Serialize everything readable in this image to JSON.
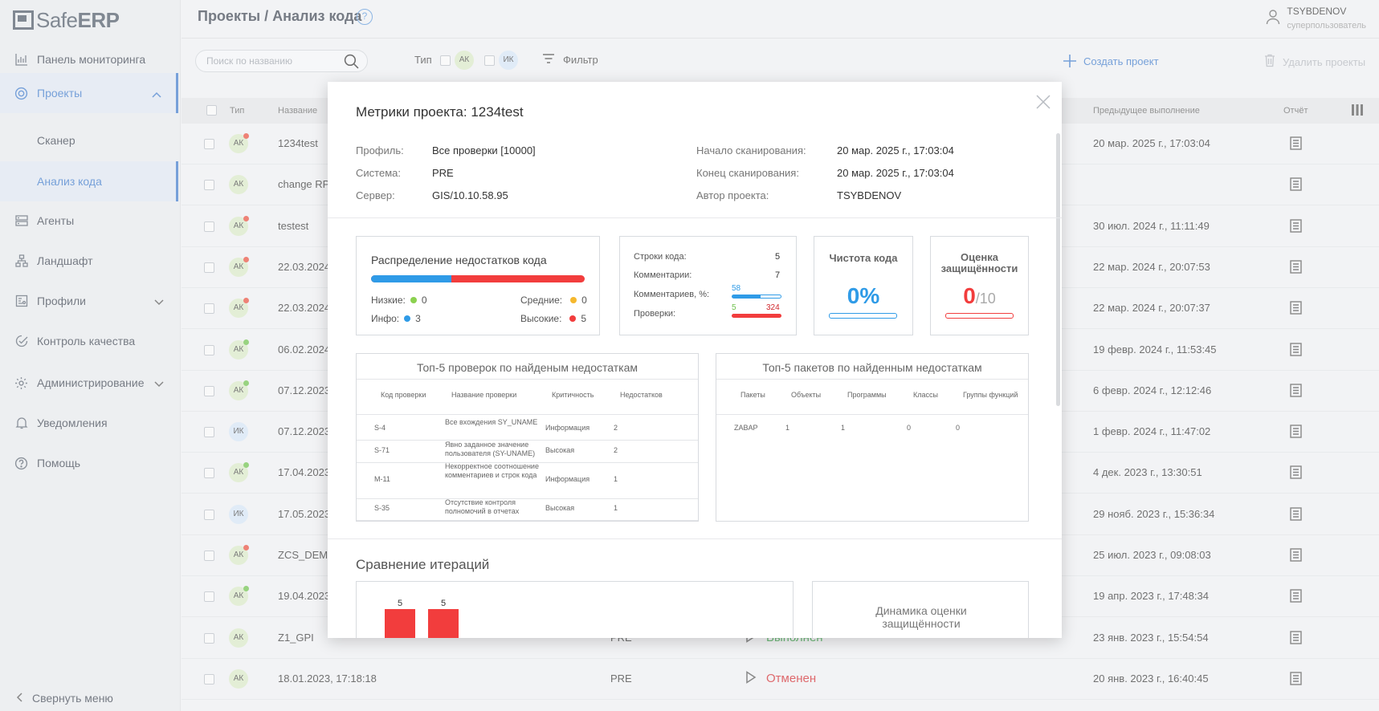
{
  "app": {
    "logo_light": "Safe",
    "logo_bold": "ERP"
  },
  "sidebar": {
    "items": [
      {
        "label": "Панель мониторинга",
        "icon": "dashboard-chart-icon"
      },
      {
        "label": "Проекты",
        "icon": "projects-icon",
        "expanded": true
      },
      {
        "label": "Сканер",
        "sub": true
      },
      {
        "label": "Анализ кода",
        "sub": true,
        "active": true
      },
      {
        "label": "Агенты",
        "icon": "server-icon"
      },
      {
        "label": "Ландшафт",
        "icon": "landscape-icon"
      },
      {
        "label": "Профили",
        "icon": "profiles-icon"
      },
      {
        "label": "Контроль качества",
        "icon": "quality-icon"
      },
      {
        "label": "Администрирование",
        "icon": "gear-icon"
      },
      {
        "label": "Уведомления",
        "icon": "bell-icon"
      },
      {
        "label": "Помощь",
        "icon": "help-icon"
      }
    ],
    "collapse_label": "Свернуть меню"
  },
  "header": {
    "title": "Проекты / Анализ кода",
    "user_name": "TSYBDENOV",
    "user_role": "суперпользователь"
  },
  "toolbar": {
    "search_placeholder": "Поиск по названию",
    "type_label": "Тип",
    "type_ak": "АК",
    "type_ik": "ИК",
    "filter_label": "Фильтр",
    "create_label": "Создать проект",
    "delete_label": "Удалить проекты"
  },
  "table": {
    "columns": {
      "type": "Тип",
      "name": "Название",
      "prev": "Предыдущее выполнение",
      "report": "Отчёт"
    },
    "rows": [
      {
        "type": "АК",
        "dot": "#e74c3c",
        "name": "1234test",
        "system": "",
        "status": "",
        "prev": "20 мар. 2025 г., 17:03:04"
      },
      {
        "type": "АК",
        "dot": "",
        "name": "change RP",
        "system": "",
        "status": "",
        "prev": ""
      },
      {
        "type": "АК",
        "dot": "#e74c3c",
        "name": "testest",
        "system": "",
        "status": "",
        "prev": "30 июл. 2024 г., 11:11:49"
      },
      {
        "type": "АК",
        "dot": "#e74c3c",
        "name": "22.03.2024",
        "system": "",
        "status": "",
        "prev": "22 мар. 2024 г., 20:07:53"
      },
      {
        "type": "АК",
        "dot": "#e74c3c",
        "name": "22.03.2024",
        "system": "",
        "status": "",
        "prev": "22 мар. 2024 г., 20:07:37"
      },
      {
        "type": "АК",
        "dot": "#6cc04a",
        "name": "06.02.2024",
        "system": "",
        "status": "",
        "prev": "19 февр. 2024 г., 11:53:45"
      },
      {
        "type": "АК",
        "dot": "#6cc04a",
        "name": "07.12.2023",
        "system": "",
        "status": "",
        "prev": "6 февр. 2024 г., 12:12:46"
      },
      {
        "type": "ИК",
        "dot": "",
        "name": "07.12.2023",
        "system": "",
        "status": "",
        "prev": "1 февр. 2024 г., 11:47:02"
      },
      {
        "type": "АК",
        "dot": "#6cc04a",
        "name": "17.04.2023",
        "system": "",
        "status": "",
        "prev": "4 дек. 2023 г., 13:30:51"
      },
      {
        "type": "ИК",
        "dot": "",
        "name": "17.05.2023",
        "system": "",
        "status": "",
        "prev": "29 нояб. 2023 г., 15:36:34"
      },
      {
        "type": "АК",
        "dot": "#e74c3c",
        "name": "ZCS_DEMO",
        "system": "",
        "status": "",
        "prev": "25 июл. 2023 г., 09:08:03"
      },
      {
        "type": "АК",
        "dot": "#6cc04a",
        "name": "19.04.2023",
        "system": "",
        "status": "",
        "prev": "19 апр. 2023 г., 17:48:34"
      },
      {
        "type": "АК",
        "dot": "",
        "name": "Z1_GPI",
        "system": "PRE",
        "status": "Выполнен",
        "status_color": "#2e9b3e",
        "prev": "23 янв. 2023 г., 15:54:54"
      },
      {
        "type": "АК",
        "dot": "",
        "name": "18.01.2023, 17:18:18",
        "system": "PRE",
        "status": "Отменен",
        "status_color": "#d0282d",
        "prev": "20 янв. 2023 г., 16:40:45"
      }
    ]
  },
  "modal": {
    "title": "Метрики проекта: 1234test",
    "profile_k": "Профиль:",
    "profile_v": "Все проверки [10000]",
    "system_k": "Система:",
    "system_v": "PRE",
    "server_k": "Сервер:",
    "server_v": "GIS/10.10.58.95",
    "scan_start_k": "Начало сканирования:",
    "scan_start_v": "20 мар. 2025 г., 17:03:04",
    "scan_end_k": "Конец сканирования:",
    "scan_end_v": "20 мар. 2025 г., 17:03:04",
    "author_k": "Автор проекта:",
    "author_v": "TSYBDENOV",
    "distribution": {
      "title": "Распределение недостатков кода",
      "low_label": "Низкие:",
      "low": "0",
      "medium_label": "Средние:",
      "medium": "0",
      "info_label": "Инфо:",
      "info": "3",
      "high_label": "Высокие:",
      "high": "5",
      "info_share": 0.375
    },
    "code_stats": {
      "lines_label": "Строки кода:",
      "lines": "5",
      "comments_label": "Комментарии:",
      "comments": "7",
      "comments_pct_label": "Комментариев, %:",
      "comments_pct": "58",
      "checks_label": "Проверки:",
      "checks_a": "5",
      "checks_b": "324"
    },
    "cleanliness": {
      "title": "Чистота кода",
      "value": "0%"
    },
    "security": {
      "title": "Оценка защищённости",
      "value": "0",
      "max": "/10"
    },
    "top_checks": {
      "title": "Топ-5 проверок по найденым недостаткам",
      "headers": [
        "Код проверки",
        "Название проверки",
        "Критичность",
        "Недостатков"
      ],
      "rows": [
        [
          "S-4",
          "Все вхождения SY_UNAME",
          "Информация",
          "2"
        ],
        [
          "S-71",
          "Явно заданное значение пользователя (SY-UNAME)",
          "Высокая",
          "2"
        ],
        [
          "M-11",
          "Некорректное соотношение комментариев и строк кода",
          "Информация",
          "1"
        ],
        [
          "S-35",
          "Отсутствие контроля полномочий в отчетах",
          "Высокая",
          "1"
        ]
      ]
    },
    "top_packages": {
      "title": "Топ-5 пакетов по найденным недостаткам",
      "headers": [
        "Пакеты",
        "Объекты",
        "Программы",
        "Классы",
        "Группы функций"
      ],
      "rows": [
        [
          "ZABAP",
          "1",
          "1",
          "0",
          "0"
        ]
      ]
    },
    "iterations_title": "Сравнение итераций",
    "iterations_bars": [
      "5",
      "5"
    ],
    "dynamics_title": "Динамика оценки защищённости"
  }
}
